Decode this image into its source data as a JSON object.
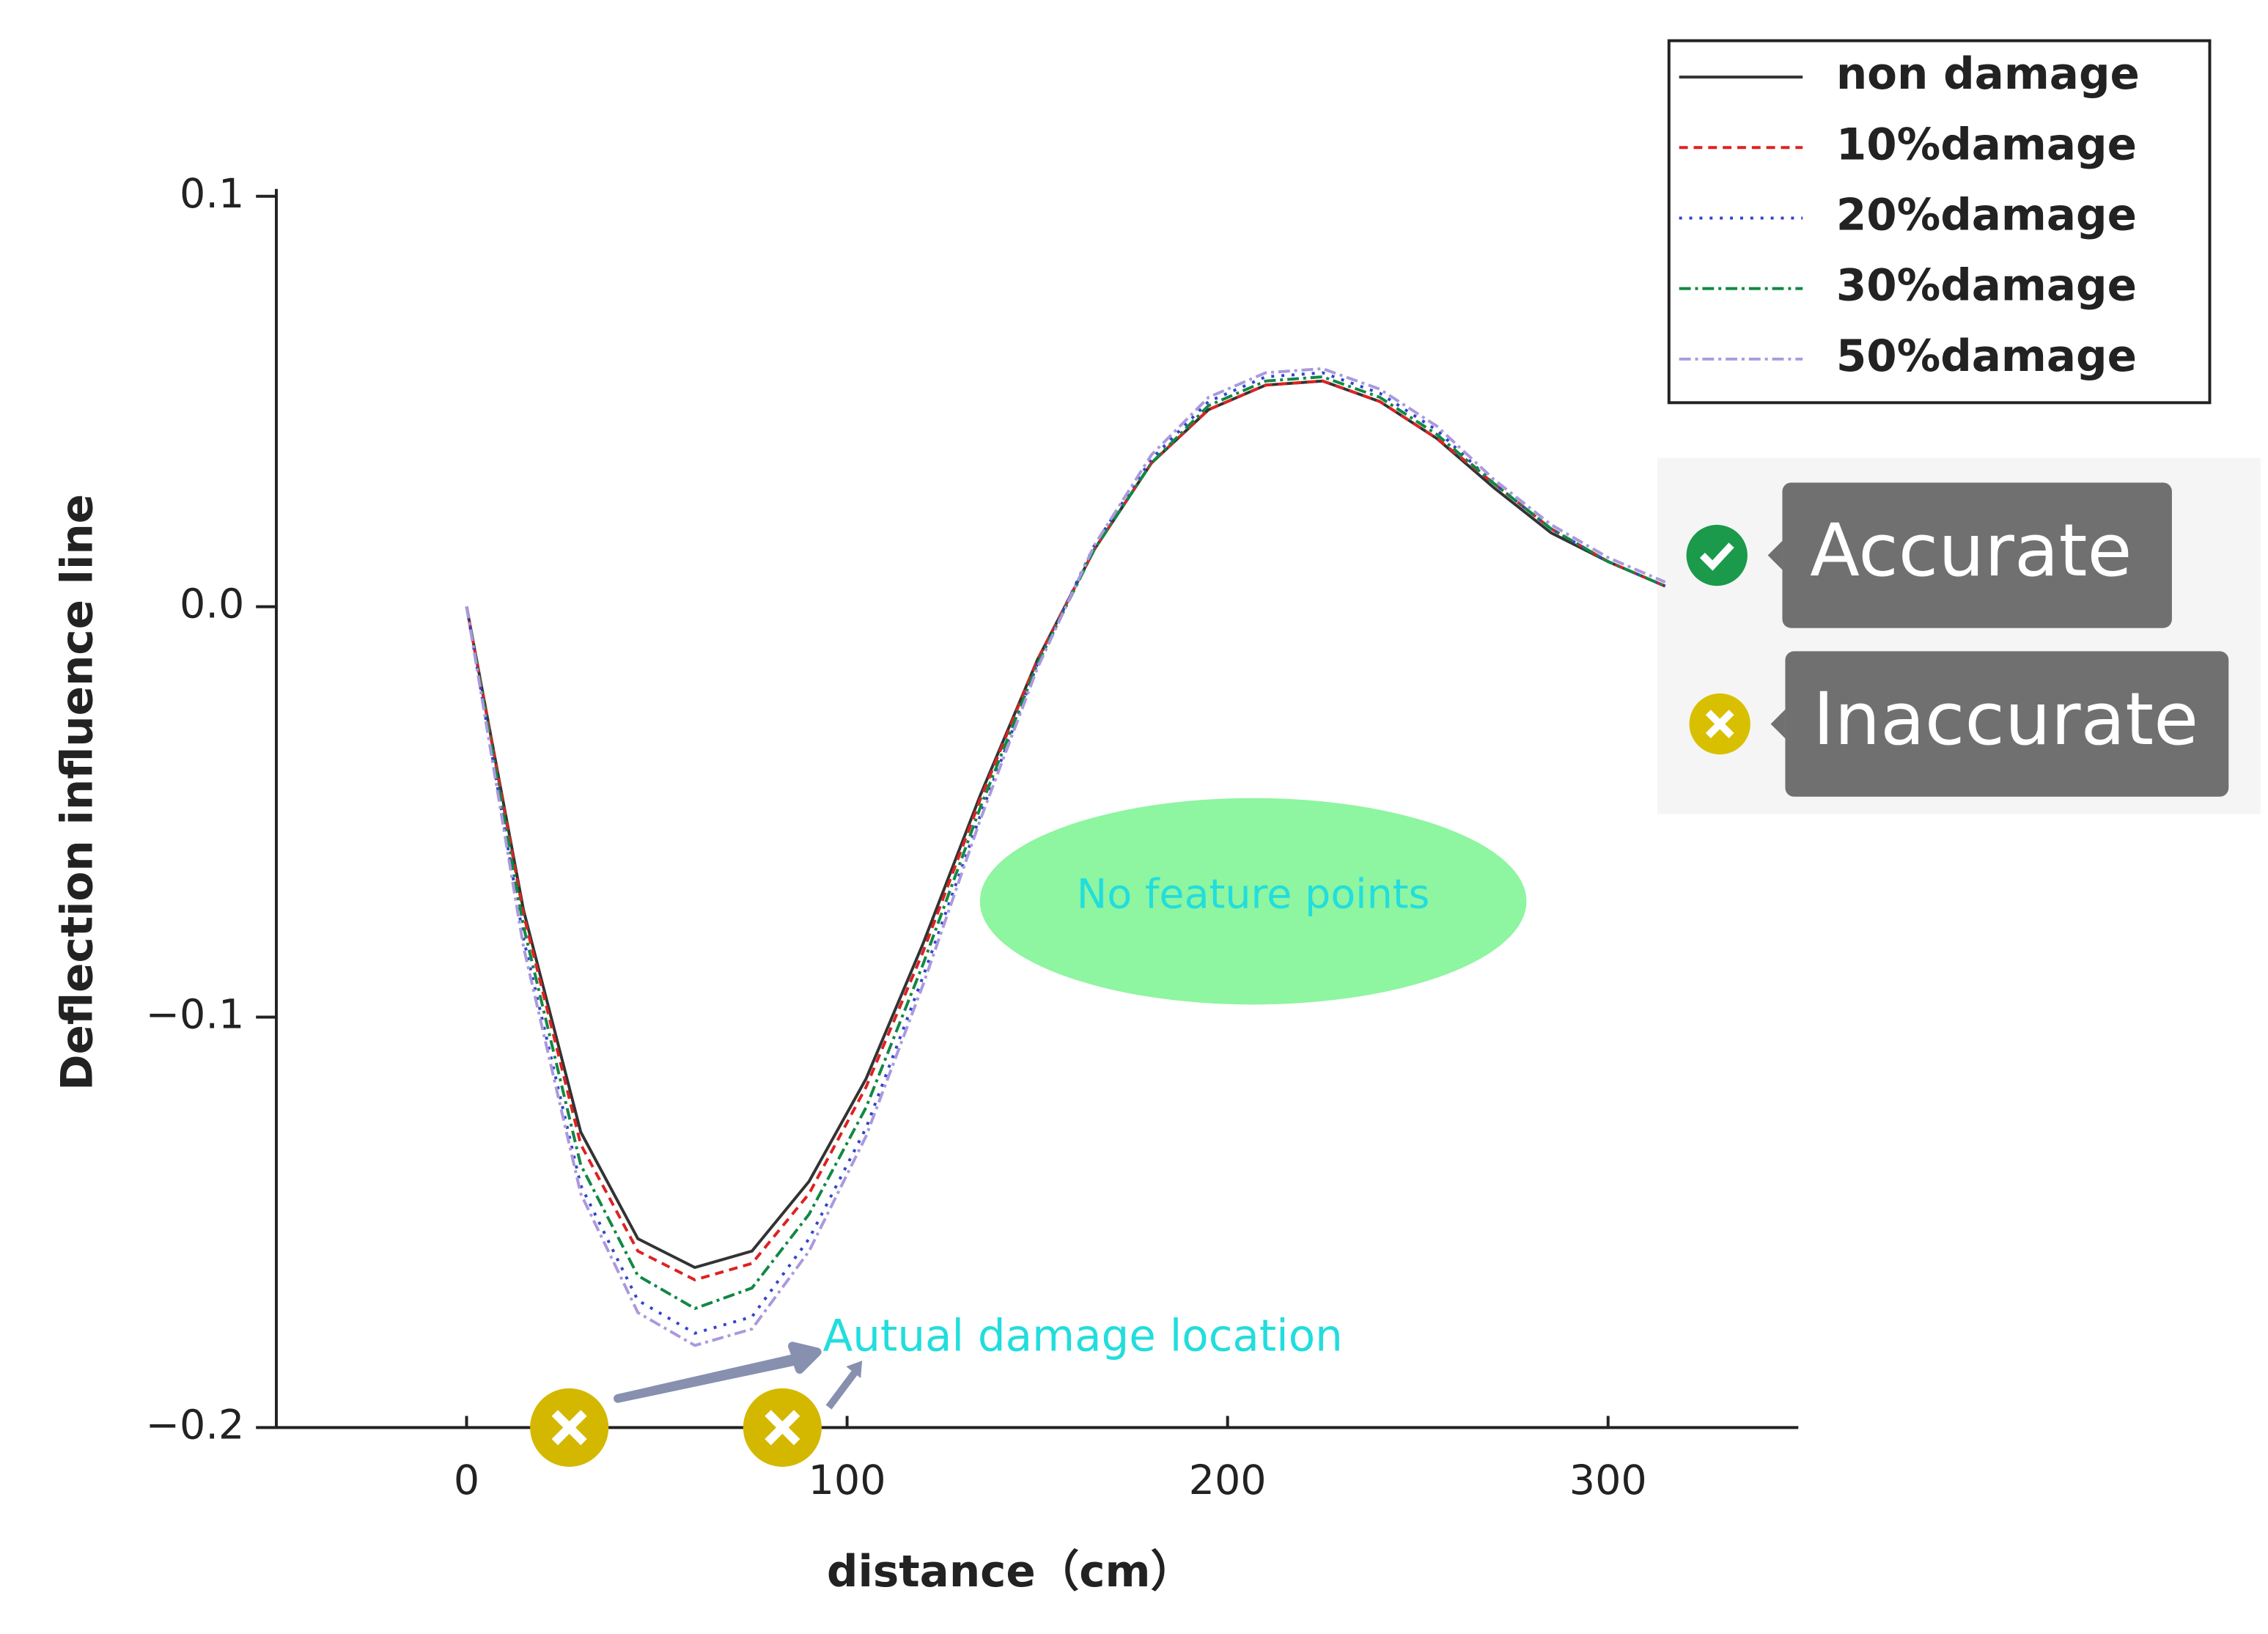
{
  "chart_data": {
    "type": "line",
    "x_label": "distance（cm）",
    "y_label": "Deflection influence line",
    "x": [
      0,
      15,
      30,
      45,
      60,
      75,
      90,
      105,
      120,
      135,
      150,
      165,
      180,
      195,
      210,
      225,
      240,
      255,
      270,
      285,
      300,
      315
    ],
    "series": [
      {
        "name": "non damage",
        "color": "#333333",
        "dash": "solid",
        "values": [
          0,
          -0.074,
          -0.128,
          -0.154,
          -0.161,
          -0.157,
          -0.14,
          -0.115,
          -0.082,
          -0.046,
          -0.013,
          0.014,
          0.035,
          0.048,
          0.054,
          0.055,
          0.05,
          0.041,
          0.029,
          0.018,
          0.011,
          0.005
        ]
      },
      {
        "name": "10%damage",
        "color": "#dd2222",
        "dash": "dashed",
        "values": [
          0,
          -0.075,
          -0.131,
          -0.157,
          -0.164,
          -0.16,
          -0.143,
          -0.117,
          -0.084,
          -0.047,
          -0.013,
          0.014,
          0.035,
          0.048,
          0.054,
          0.055,
          0.05,
          0.041,
          0.03,
          0.019,
          0.011,
          0.005
        ]
      },
      {
        "name": "20%damage",
        "color": "#3344cc",
        "dash": "dotted",
        "values": [
          0,
          -0.081,
          -0.141,
          -0.169,
          -0.177,
          -0.173,
          -0.154,
          -0.127,
          -0.09,
          -0.051,
          -0.014,
          0.015,
          0.036,
          0.05,
          0.056,
          0.057,
          0.052,
          0.043,
          0.03,
          0.019,
          0.011,
          0.005
        ]
      },
      {
        "name": "30%damage",
        "color": "#118844",
        "dash": "dashdot",
        "values": [
          0,
          -0.078,
          -0.136,
          -0.163,
          -0.171,
          -0.166,
          -0.148,
          -0.122,
          -0.087,
          -0.049,
          -0.014,
          0.014,
          0.035,
          0.049,
          0.055,
          0.056,
          0.051,
          0.042,
          0.03,
          0.019,
          0.011,
          0.005
        ]
      },
      {
        "name": "50%damage",
        "color": "#aa99dd",
        "dash": "dashdot",
        "values": [
          0,
          -0.083,
          -0.143,
          -0.172,
          -0.18,
          -0.176,
          -0.157,
          -0.129,
          -0.092,
          -0.052,
          -0.015,
          0.015,
          0.037,
          0.051,
          0.057,
          0.058,
          0.053,
          0.044,
          0.031,
          0.02,
          0.012,
          0.006
        ]
      }
    ],
    "xlim": [
      -50,
      350
    ],
    "ylim": [
      -0.2,
      0.1
    ],
    "xticks": [
      0,
      100,
      200,
      300
    ],
    "yticks": [
      0.1,
      {
        "value": 0,
        "label": "0.0"
      },
      {
        "value": -0.1,
        "label": "−0.1"
      },
      {
        "value": -0.2,
        "label": "−0.2"
      }
    ],
    "legend": "top-right",
    "annotations": {
      "region": "No feature points",
      "damage": "Autual damage location"
    },
    "damage_locations": [
      27,
      83
    ],
    "badges": {
      "accurate": "Accurate",
      "inaccurate": "Inaccurate"
    }
  }
}
